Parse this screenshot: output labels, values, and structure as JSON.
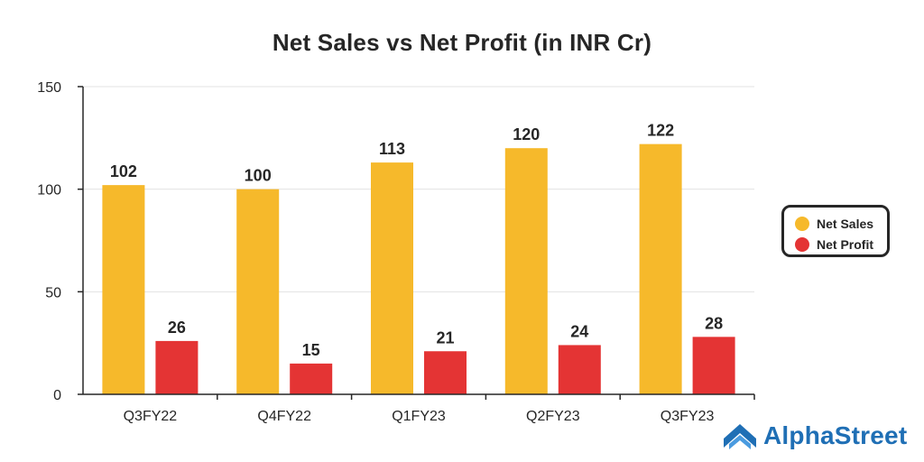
{
  "title": "Net Sales vs Net Profit (in INR Cr)",
  "brand": {
    "name": "AlphaStreet",
    "icon": "alphastreet-logo-icon",
    "color": "#1f6fb5"
  },
  "legend": [
    {
      "label": "Net Sales",
      "color": "#F6B92B"
    },
    {
      "label": "Net Profit",
      "color": "#E43434"
    }
  ],
  "chart_data": {
    "type": "bar",
    "title": "Net Sales vs Net Profit (in INR Cr)",
    "categories": [
      "Q3FY22",
      "Q4FY22",
      "Q1FY23",
      "Q2FY23",
      "Q3FY23"
    ],
    "series": [
      {
        "name": "Net Sales",
        "values": [
          102,
          100,
          113,
          120,
          122
        ],
        "color": "#F6B92B"
      },
      {
        "name": "Net Profit",
        "values": [
          26,
          15,
          21,
          24,
          28
        ],
        "color": "#E43434"
      }
    ],
    "ylim": [
      0,
      150
    ],
    "yticks": [
      0,
      50,
      100,
      150
    ],
    "xlabel": "",
    "ylabel": "",
    "grid": true,
    "legend_position": "right",
    "data_labels": true
  }
}
